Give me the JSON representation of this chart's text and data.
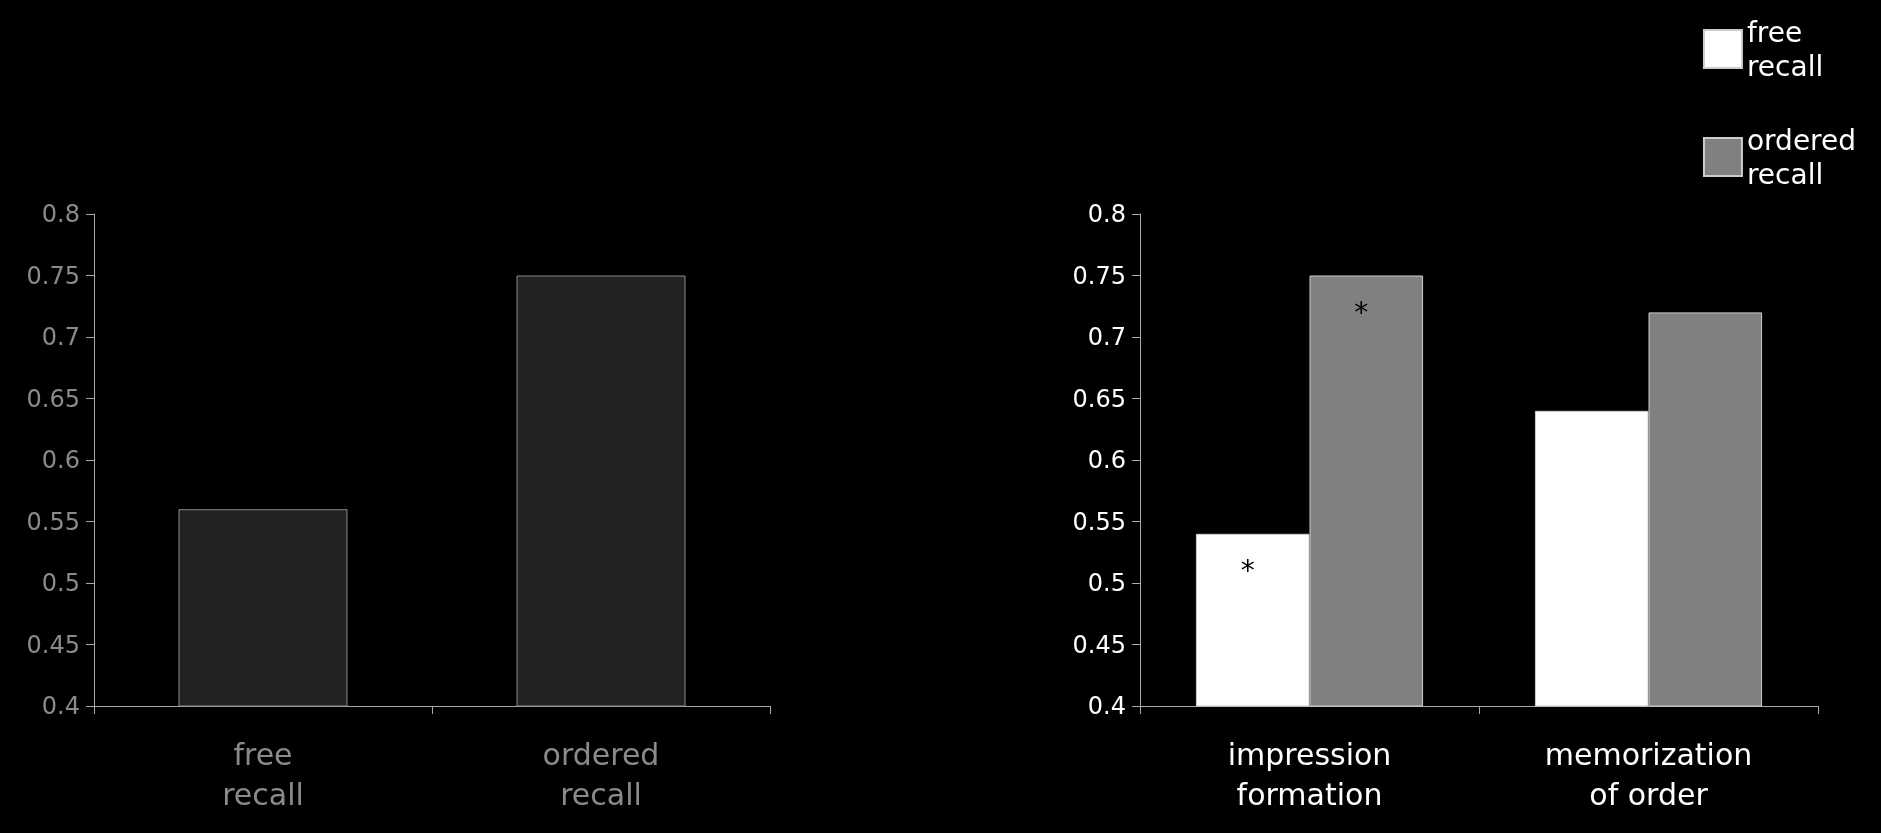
{
  "chart_data": [
    {
      "type": "bar",
      "categories": [
        "free recall",
        "ordered recall"
      ],
      "values": [
        0.56,
        0.75
      ],
      "color": "#222222",
      "ylim": [
        0.4,
        0.8
      ],
      "yticks": [
        0.4,
        0.45,
        0.5,
        0.55,
        0.6,
        0.65,
        0.7,
        0.75,
        0.8
      ],
      "grid": false,
      "legend": false
    },
    {
      "type": "bar",
      "categories": [
        "impression formation",
        "memorization of order"
      ],
      "series": [
        {
          "name": "free recall",
          "color": "#ffffff",
          "values": [
            0.54,
            0.64
          ],
          "value_labels": [
            "*",
            null
          ]
        },
        {
          "name": "ordered recall",
          "color": "#808080",
          "values": [
            0.75,
            0.72
          ],
          "value_labels": [
            "*",
            null
          ]
        }
      ],
      "ylim": [
        0.4,
        0.8
      ],
      "yticks": [
        0.4,
        0.45,
        0.5,
        0.55,
        0.6,
        0.65,
        0.7,
        0.75,
        0.8
      ],
      "grid": false,
      "legend": "top right"
    }
  ]
}
